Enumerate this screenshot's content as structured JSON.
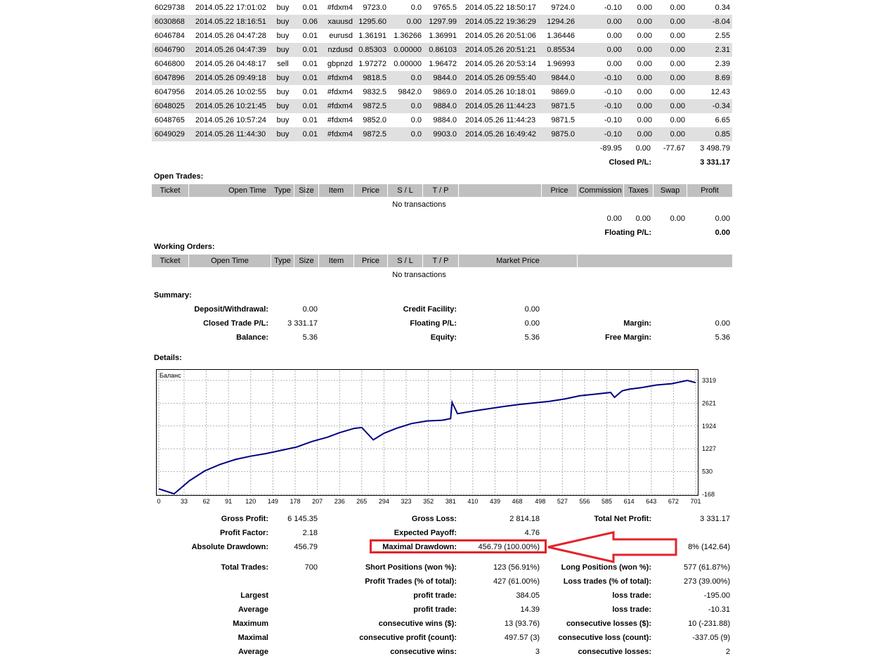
{
  "closed_trades": [
    [
      "6029738",
      "2014.05.22 17:01:02",
      "buy",
      "0.01",
      "#fdxm4",
      "9723.0",
      "0.0",
      "9765.5",
      "2014.05.22 18:50:17",
      "9724.0",
      "-0.10",
      "0.00",
      "0.00",
      "0.34"
    ],
    [
      "6030868",
      "2014.05.22 18:16:51",
      "buy",
      "0.06",
      "xauusd",
      "1295.60",
      "0.00",
      "1297.99",
      "2014.05.22 19:36:29",
      "1294.26",
      "0.00",
      "0.00",
      "0.00",
      "-8.04"
    ],
    [
      "6046784",
      "2014.05.26 04:47:28",
      "buy",
      "0.01",
      "eurusd",
      "1.36191",
      "1.36266",
      "1.36991",
      "2014.05.26 20:51:06",
      "1.36446",
      "0.00",
      "0.00",
      "0.00",
      "2.55"
    ],
    [
      "6046790",
      "2014.05.26 04:47:39",
      "buy",
      "0.01",
      "nzdusd",
      "0.85303",
      "0.00000",
      "0.86103",
      "2014.05.26 20:51:21",
      "0.85534",
      "0.00",
      "0.00",
      "0.00",
      "2.31"
    ],
    [
      "6046800",
      "2014.05.26 04:48:17",
      "sell",
      "0.01",
      "gbpnzd",
      "1.97272",
      "0.00000",
      "1.96472",
      "2014.05.26 20:53:14",
      "1.96993",
      "0.00",
      "0.00",
      "0.00",
      "2.39"
    ],
    [
      "6047896",
      "2014.05.26 09:49:18",
      "buy",
      "0.01",
      "#fdxm4",
      "9818.5",
      "0.0",
      "9844.0",
      "2014.05.26 09:55:40",
      "9844.0",
      "-0.10",
      "0.00",
      "0.00",
      "8.69"
    ],
    [
      "6047956",
      "2014.05.26 10:02:55",
      "buy",
      "0.01",
      "#fdxm4",
      "9832.5",
      "9842.0",
      "9869.0",
      "2014.05.26 10:18:01",
      "9869.0",
      "-0.10",
      "0.00",
      "0.00",
      "12.43"
    ],
    [
      "6048025",
      "2014.05.26 10:21:45",
      "buy",
      "0.01",
      "#fdxm4",
      "9872.5",
      "0.0",
      "9884.0",
      "2014.05.26 11:44:23",
      "9871.5",
      "-0.10",
      "0.00",
      "0.00",
      "-0.34"
    ],
    [
      "6048765",
      "2014.05.26 10:57:24",
      "buy",
      "0.01",
      "#fdxm4",
      "9852.0",
      "0.0",
      "9884.0",
      "2014.05.26 11:44:23",
      "9871.5",
      "-0.10",
      "0.00",
      "0.00",
      "6.65"
    ],
    [
      "6049029",
      "2014.05.26 11:44:30",
      "buy",
      "0.01",
      "#fdxm4",
      "9872.5",
      "0.0",
      "9903.0",
      "2014.05.26 16:49:42",
      "9875.0",
      "-0.10",
      "0.00",
      "0.00",
      "0.85"
    ]
  ],
  "closed_totals": {
    "commission": "-89.95",
    "taxes": "0.00",
    "swap": "-77.67",
    "profit": "3 498.79",
    "label": "Closed P/L:",
    "value": "3 331.17"
  },
  "open_trades": {
    "title": "Open Trades:",
    "headers": [
      "Ticket",
      "Open Time",
      "Type",
      "Size",
      "Item",
      "Price",
      "S / L",
      "T / P",
      "Price",
      "Commission",
      "Taxes",
      "Swap",
      "Profit"
    ],
    "empty": "No transactions",
    "totals": [
      "0.00",
      "0.00",
      "0.00",
      "0.00"
    ],
    "floating_label": "Floating P/L:",
    "floating_value": "0.00"
  },
  "working_orders": {
    "title": "Working Orders:",
    "headers": [
      "Ticket",
      "Open Time",
      "Type",
      "Size",
      "Item",
      "Price",
      "S / L",
      "T / P",
      "Market Price"
    ],
    "empty": "No transactions"
  },
  "summary": {
    "title": "Summary:",
    "deposit_label": "Deposit/Withdrawal:",
    "deposit": "0.00",
    "credit_label": "Credit Facility:",
    "credit": "0.00",
    "closed_pl_label": "Closed Trade P/L:",
    "closed_pl": "3 331.17",
    "floating_label": "Floating P/L:",
    "floating": "0.00",
    "margin_label": "Margin:",
    "margin": "0.00",
    "balance_label": "Balance:",
    "balance": "5.36",
    "equity_label": "Equity:",
    "equity": "5.36",
    "free_margin_label": "Free Margin:",
    "free_margin": "5.36"
  },
  "details": {
    "title": "Details:",
    "gross_profit_label": "Gross Profit:",
    "gross_profit": "6 145.35",
    "gross_loss_label": "Gross Loss:",
    "gross_loss": "2 814.18",
    "total_net_label": "Total Net Profit:",
    "total_net": "3 331.17",
    "profit_factor_label": "Profit Factor:",
    "profit_factor": "2.18",
    "expected_payoff_label": "Expected Payoff:",
    "expected_payoff": "4.76",
    "abs_drawdown_label": "Absolute Drawdown:",
    "abs_drawdown": "456.79",
    "max_drawdown_label": "Maximal Drawdown:",
    "max_drawdown": "456.79 (100.00%)",
    "rel_drawdown_partial": "8% (142.64)",
    "total_trades_label": "Total Trades:",
    "total_trades": "700",
    "short_label": "Short Positions (won %):",
    "short": "123 (56.91%)",
    "long_label": "Long Positions (won %):",
    "long": "577 (61.87%)",
    "profit_trades_label": "Profit Trades (% of total):",
    "profit_trades": "427 (61.00%)",
    "loss_trades_label": "Loss trades (% of total):",
    "loss_trades": "273 (39.00%)",
    "largest": "Largest",
    "largest_profit_label": "profit trade:",
    "largest_profit": "384.05",
    "largest_loss_label": "loss trade:",
    "largest_loss": "-195.00",
    "average": "Average",
    "average_profit_label": "profit trade:",
    "average_profit": "14.39",
    "average_loss_label": "loss trade:",
    "average_loss": "-10.31",
    "maximum": "Maximum",
    "max_wins_label": "consecutive wins ($):",
    "max_wins": "13 (93.76)",
    "max_losses_label": "consecutive losses ($):",
    "max_losses": "10 (-231.88)",
    "maximal": "Maximal",
    "maximal_profit_label": "consecutive profit (count):",
    "maximal_profit": "497.57 (3)",
    "maximal_loss_label": "consecutive loss (count):",
    "maximal_loss": "-337.05 (9)",
    "average2": "Average",
    "avg_wins_label": "consecutive wins:",
    "avg_wins": "3",
    "avg_losses_label": "consecutive losses:",
    "avg_losses": "2"
  },
  "chart_data": {
    "type": "line",
    "title": "Баланс",
    "x_ticks": [
      "0",
      "33",
      "62",
      "91",
      "120",
      "149",
      "178",
      "207",
      "236",
      "265",
      "294",
      "323",
      "352",
      "381",
      "410",
      "439",
      "468",
      "498",
      "527",
      "556",
      "585",
      "614",
      "643",
      "672",
      "701"
    ],
    "y_ticks": [
      "3319",
      "2621",
      "1924",
      "1227",
      "530",
      "-168"
    ],
    "xlim": [
      0,
      701
    ],
    "ylim": [
      -168,
      3319
    ],
    "grid": true,
    "line_color": "#000080",
    "series": [
      {
        "x": [
          0,
          20,
          40,
          60,
          80,
          100,
          120,
          140,
          160,
          180,
          200,
          220,
          236,
          255,
          265,
          280,
          294,
          310,
          330,
          350,
          370,
          381,
          383,
          390,
          410,
          430,
          450,
          470,
          490,
          510,
          530,
          550,
          570,
          590,
          595,
          605,
          614,
          630,
          650,
          670,
          690,
          701
        ],
        "y": [
          0,
          -150,
          250,
          550,
          750,
          900,
          1000,
          1080,
          1180,
          1280,
          1450,
          1580,
          1720,
          1850,
          1880,
          1500,
          1700,
          1850,
          2000,
          2080,
          2100,
          2150,
          2650,
          2300,
          2380,
          2450,
          2520,
          2580,
          2630,
          2680,
          2750,
          2850,
          2900,
          2950,
          2800,
          3000,
          3050,
          3100,
          3180,
          3220,
          3319,
          3250
        ]
      }
    ]
  }
}
